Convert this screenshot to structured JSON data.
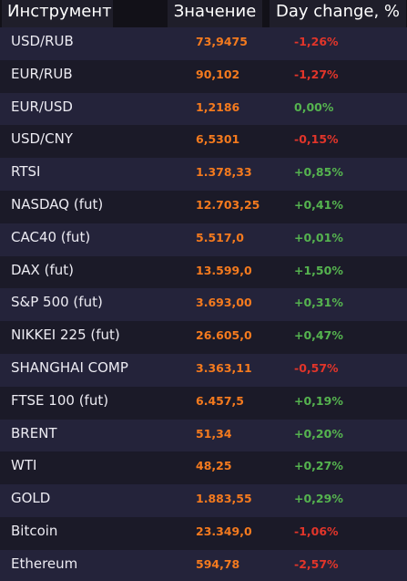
{
  "header": {
    "instrument": "Инструмент",
    "value": "Значение",
    "change": "Day change, %"
  },
  "colors": {
    "value": "#f47a1e",
    "negative": "#e2352a",
    "positive": "#55b34f",
    "background": "#1e1d2b"
  },
  "rows": [
    {
      "name": "USD/RUB",
      "value": "73,9475",
      "change": "-1,26%",
      "dir": "neg"
    },
    {
      "name": "EUR/RUB",
      "value": "90,102",
      "change": "-1,27%",
      "dir": "neg"
    },
    {
      "name": "EUR/USD",
      "value": "1,2186",
      "change": "0,00%",
      "dir": "pos"
    },
    {
      "name": "USD/CNY",
      "value": "6,5301",
      "change": "-0,15%",
      "dir": "neg"
    },
    {
      "name": "RTSI",
      "value": "1.378,33",
      "change": "+0,85%",
      "dir": "pos"
    },
    {
      "name": "NASDAQ (fut)",
      "value": "12.703,25",
      "change": "+0,41%",
      "dir": "pos"
    },
    {
      "name": "CAC40 (fut)",
      "value": "5.517,0",
      "change": "+0,01%",
      "dir": "pos"
    },
    {
      "name": "DAX (fut)",
      "value": "13.599,0",
      "change": "+1,50%",
      "dir": "pos"
    },
    {
      "name": "S&P 500 (fut)",
      "value": "3.693,00",
      "change": "+0,31%",
      "dir": "pos"
    },
    {
      "name": "NIKKEI 225 (fut)",
      "value": "26.605,0",
      "change": "+0,47%",
      "dir": "pos"
    },
    {
      "name": "SHANGHAI COMP",
      "value": "3.363,11",
      "change": "-0,57%",
      "dir": "neg"
    },
    {
      "name": "FTSE 100 (fut)",
      "value": "6.457,5",
      "change": "+0,19%",
      "dir": "pos"
    },
    {
      "name": "BRENT",
      "value": "51,34",
      "change": "+0,20%",
      "dir": "pos"
    },
    {
      "name": "WTI",
      "value": "48,25",
      "change": "+0,27%",
      "dir": "pos"
    },
    {
      "name": "GOLD",
      "value": "1.883,55",
      "change": "+0,29%",
      "dir": "pos"
    },
    {
      "name": "Bitcoin",
      "value": "23.349,0",
      "change": "-1,06%",
      "dir": "neg"
    },
    {
      "name": "Ethereum",
      "value": "594,78",
      "change": "-2,57%",
      "dir": "neg"
    }
  ]
}
